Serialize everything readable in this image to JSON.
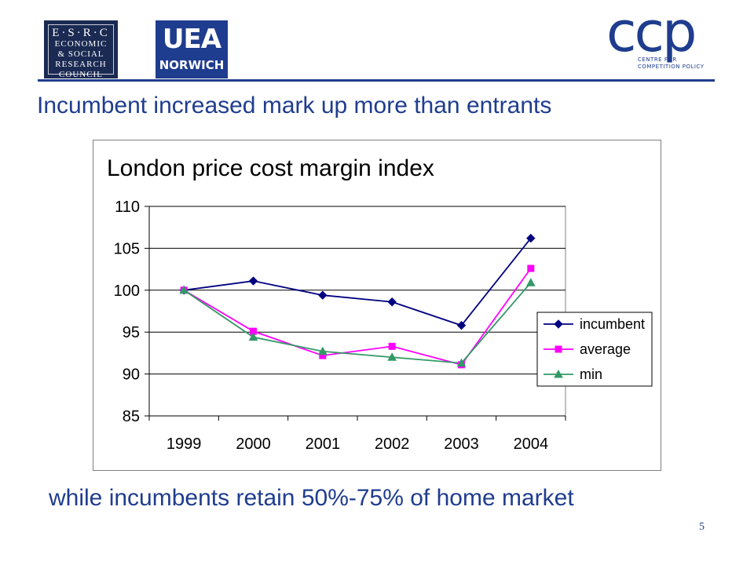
{
  "header": {
    "esrc_logo": [
      "E·S·R·C",
      "ECONOMIC",
      "& SOCIAL",
      "RESEARCH",
      "COUNCIL"
    ],
    "uea_logo": [
      "UEA",
      "NORWICH"
    ],
    "ccp_logo": {
      "mark": "ccp",
      "sub": [
        "CENTRE FOR",
        "COMPETITION POLICY"
      ]
    }
  },
  "slide": {
    "title": "Incumbent increased mark up more than entrants",
    "bottom_text": "while incumbents retain 50%-75% of home market",
    "page_number": "5"
  },
  "chart_data": {
    "type": "line",
    "title": "London price cost margin index",
    "xlabel": "",
    "ylabel": "",
    "x": [
      "1999",
      "2000",
      "2001",
      "2002",
      "2003",
      "2004"
    ],
    "ylim": [
      85,
      110
    ],
    "yticks": [
      85,
      90,
      95,
      100,
      105,
      110
    ],
    "grid": true,
    "legend": "right",
    "series": [
      {
        "name": "incumbent",
        "color": "#000080",
        "marker": "diamond",
        "values": [
          100,
          101.1,
          99.4,
          98.6,
          95.8,
          106.2
        ]
      },
      {
        "name": "average",
        "color": "#ff00ff",
        "marker": "square",
        "values": [
          100,
          95.1,
          92.2,
          93.3,
          91.1,
          102.6
        ]
      },
      {
        "name": "min",
        "color": "#339966",
        "marker": "triangle",
        "values": [
          100,
          94.4,
          92.7,
          92.0,
          91.3,
          100.9
        ]
      }
    ]
  }
}
